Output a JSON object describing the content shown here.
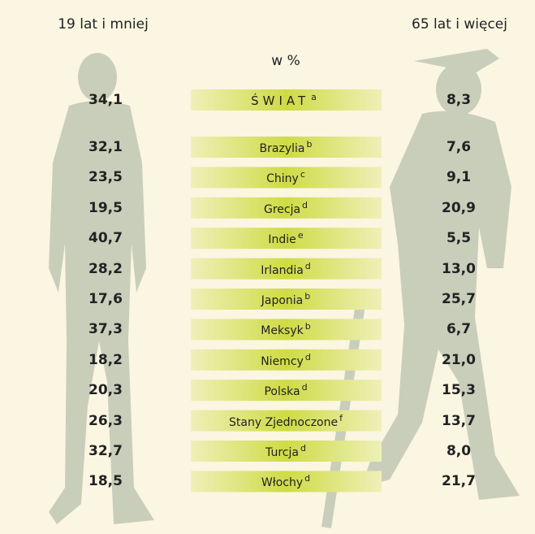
{
  "header": {
    "left": "19 lat i mniej",
    "right": "65 lat i więcej",
    "unit": "w %"
  },
  "rows": [
    {
      "left": "34,1",
      "name": "ŚWIAT",
      "note": "a",
      "right": "8,3"
    },
    {
      "left": "32,1",
      "name": "Brazylia",
      "note": "b",
      "right": "7,6"
    },
    {
      "left": "23,5",
      "name": "Chiny",
      "note": "c",
      "right": "9,1"
    },
    {
      "left": "19,5",
      "name": "Grecja",
      "note": "d",
      "right": "20,9"
    },
    {
      "left": "40,7",
      "name": "Indie",
      "note": "e",
      "right": "5,5"
    },
    {
      "left": "28,2",
      "name": "Irlandia",
      "note": "d",
      "right": "13,0"
    },
    {
      "left": "17,6",
      "name": "Japonia",
      "note": "b",
      "right": "25,7"
    },
    {
      "left": "37,3",
      "name": "Meksyk",
      "note": "b",
      "right": "6,7"
    },
    {
      "left": "18,2",
      "name": "Niemcy",
      "note": "d",
      "right": "21,0"
    },
    {
      "left": "20,3",
      "name": "Polska",
      "note": "d",
      "right": "15,3"
    },
    {
      "left": "26,3",
      "name": "Stany Zjednoczone",
      "note": "f",
      "right": "13,7"
    },
    {
      "left": "32,7",
      "name": "Turcja",
      "note": "d",
      "right": "8,0"
    },
    {
      "left": "18,5",
      "name": "Włochy",
      "note": "d",
      "right": "21,7"
    }
  ]
}
